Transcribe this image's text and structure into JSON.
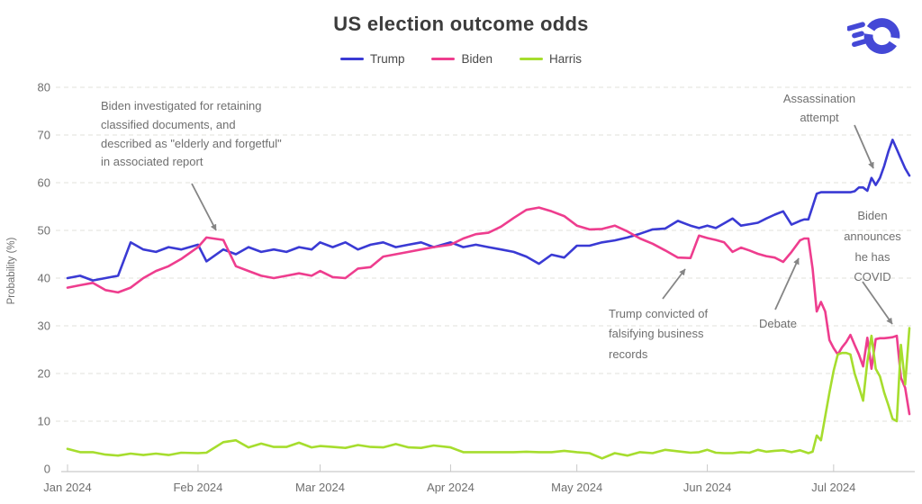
{
  "title": "US election outcome odds",
  "colors": {
    "trump": "#3a3ad4",
    "biden": "#ee3d8e",
    "harris": "#a6dd2e",
    "logo": "#4448d6",
    "grid": "#e7e7e2",
    "axis": "#c9c9c9",
    "text_muted": "#6f6f6f",
    "title_text": "#3c3c3c",
    "arrow": "#858585"
  },
  "annotations": [
    {
      "text": "Biden investigated for retaining classified documents, and described as \"elderly and forgetful\" in associated report"
    },
    {
      "text": "Assassination attempt"
    },
    {
      "text": "Trump convicted of falsifying business records"
    },
    {
      "text": "Debate"
    },
    {
      "text": "Biden announces he has COVID"
    }
  ],
  "chart_data": {
    "type": "line",
    "title": "US election outcome odds",
    "ylabel": "Probability (%)",
    "ylim": [
      0,
      80
    ],
    "y_ticks": [
      0,
      10,
      20,
      30,
      40,
      50,
      60,
      70,
      80
    ],
    "grid": "horizontal-dashed",
    "legend_position": "top-center",
    "x_unit": "days since Jan 1 2024",
    "x_range": [
      0,
      200
    ],
    "x_ticks": {
      "days": [
        0,
        31,
        60,
        91,
        121,
        152,
        182
      ],
      "labels": [
        "Jan 2024",
        "Feb 2024",
        "Mar 2024",
        "Apr 2024",
        "May 2024",
        "Jun 2024",
        "Jul 2024"
      ]
    },
    "x_days": [
      0,
      3,
      6,
      9,
      12,
      15,
      18,
      21,
      24,
      27,
      31,
      33,
      37,
      40,
      43,
      46,
      49,
      52,
      55,
      58,
      60,
      63,
      66,
      69,
      72,
      75,
      78,
      81,
      84,
      87,
      91,
      94,
      97,
      100,
      103,
      106,
      109,
      112,
      115,
      118,
      121,
      124,
      127,
      130,
      133,
      136,
      139,
      142,
      145,
      148,
      150,
      152,
      154,
      156,
      158,
      160,
      162,
      164,
      166,
      168,
      170,
      172,
      174,
      175,
      176,
      177,
      178,
      179,
      180,
      181,
      182,
      183,
      184,
      185,
      186,
      187,
      188,
      189,
      190,
      191,
      192,
      193,
      194,
      195,
      196,
      197,
      198,
      199,
      200
    ],
    "series": [
      {
        "name": "Trump",
        "color": "#3a3ad4",
        "values": [
          40,
          40.5,
          39.5,
          40,
          40.5,
          47.5,
          46,
          45.5,
          46.5,
          46,
          47,
          43.5,
          46,
          45,
          46.5,
          45.5,
          46,
          45.5,
          46.5,
          46,
          47.5,
          46.5,
          47.5,
          46,
          47,
          47.5,
          46.5,
          47,
          47.5,
          46.5,
          47.5,
          46.5,
          47,
          46.5,
          46,
          45.5,
          44.5,
          43,
          44.9,
          44.3,
          46.8,
          46.8,
          47.5,
          47.9,
          48.5,
          49.3,
          50.2,
          50.4,
          52,
          51,
          50.5,
          51,
          50.5,
          51.5,
          52.5,
          51,
          51.3,
          51.6,
          52.5,
          53.3,
          54,
          51.2,
          52,
          52.3,
          52.3,
          55,
          57.7,
          58,
          58,
          58,
          58,
          58,
          58,
          58,
          58,
          58.2,
          59,
          59,
          58.3,
          61,
          59.5,
          61,
          63.5,
          66.5,
          69,
          67,
          65,
          63,
          61.5
        ]
      },
      {
        "name": "Biden",
        "color": "#ee3d8e",
        "values": [
          38,
          38.5,
          39,
          37.5,
          37,
          38,
          40,
          41.5,
          42.5,
          44,
          46.5,
          48.5,
          48,
          42.5,
          41.5,
          40.5,
          40,
          40.5,
          41,
          40.5,
          41.5,
          40.2,
          40,
          42,
          42.3,
          44.5,
          45,
          45.5,
          46,
          46.5,
          47,
          48.3,
          49.2,
          49.5,
          50.8,
          52.6,
          54.3,
          54.8,
          54,
          53,
          51,
          50.2,
          50.3,
          51,
          49.8,
          48.3,
          47.2,
          45.8,
          44.3,
          44.2,
          48.9,
          48.4,
          48,
          47.5,
          45.5,
          46.4,
          45.8,
          45.1,
          44.6,
          44.3,
          43.4,
          45.5,
          47.9,
          48.3,
          48.3,
          42,
          33,
          35,
          33,
          27,
          25.3,
          24,
          25.5,
          26.6,
          28.1,
          26,
          24,
          21.5,
          27.5,
          21,
          27.2,
          27.4,
          27.4,
          27.5,
          27.6,
          27.9,
          19.1,
          17,
          11.5
        ]
      },
      {
        "name": "Harris",
        "color": "#a6dd2e",
        "values": [
          4.2,
          3.5,
          3.5,
          3,
          2.8,
          3.2,
          2.9,
          3.2,
          2.9,
          3.4,
          3.3,
          3.4,
          5.6,
          6,
          4.5,
          5.3,
          4.6,
          4.6,
          5.5,
          4.5,
          4.8,
          4.6,
          4.4,
          5,
          4.6,
          4.5,
          5.2,
          4.5,
          4.4,
          4.9,
          4.5,
          3.5,
          3.5,
          3.5,
          3.5,
          3.5,
          3.6,
          3.5,
          3.5,
          3.8,
          3.5,
          3.3,
          2.2,
          3.3,
          2.8,
          3.5,
          3.3,
          4,
          3.7,
          3.4,
          3.5,
          4,
          3.4,
          3.3,
          3.3,
          3.5,
          3.4,
          4,
          3.6,
          3.8,
          3.9,
          3.5,
          3.9,
          3.6,
          3.3,
          3.6,
          7,
          6,
          11,
          16,
          20.6,
          24,
          24.3,
          24.3,
          24,
          20,
          17.2,
          14.3,
          22.5,
          27.9,
          21,
          19.4,
          16,
          13.4,
          10.5,
          10,
          26,
          17.7,
          29.5
        ]
      }
    ]
  }
}
